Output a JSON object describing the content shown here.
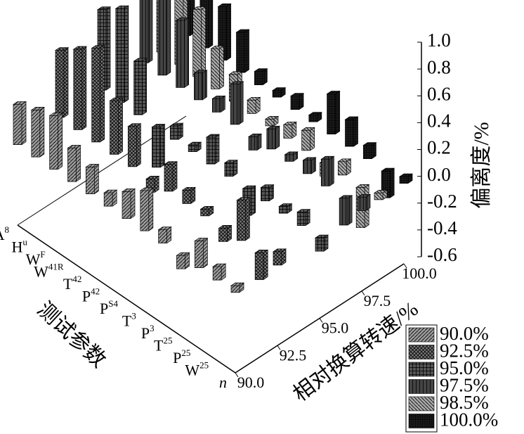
{
  "chart_data": {
    "type": "bar3d",
    "categories": [
      {
        "symbol": "A",
        "sub": "8"
      },
      {
        "symbol": "H",
        "sub": "u"
      },
      {
        "symbol": "W",
        "sub": "F"
      },
      {
        "symbol": "W",
        "sub": "41R"
      },
      {
        "symbol": "T",
        "sub": "42"
      },
      {
        "symbol": "P",
        "sub": "42"
      },
      {
        "symbol": "P",
        "sub": "S4"
      },
      {
        "symbol": "T",
        "sub": "3"
      },
      {
        "symbol": "P",
        "sub": "3"
      },
      {
        "symbol": "T",
        "sub": "25"
      },
      {
        "symbol": "P",
        "sub": "25"
      },
      {
        "symbol": "W",
        "sub": "25"
      },
      {
        "symbol": "n",
        "sub": null
      }
    ],
    "x": [
      90,
      92.5,
      95,
      97.5,
      98.5,
      100
    ],
    "xlim": [
      90,
      100
    ],
    "xticks": [
      {
        "value": 90,
        "label": "90.0"
      },
      92.5,
      {
        "value": 95,
        "label": "95.0"
      },
      97.5,
      {
        "value": 100,
        "label": "100.0"
      }
    ],
    "xlabel": "相对换算转速/%",
    "categories_label": "测试参数",
    "ylabel": "偏离度/%",
    "ylim": [
      -0.6,
      1.0
    ],
    "yticks": [
      {
        "value": 1,
        "label": "1.0"
      },
      0.8,
      0.6,
      0.4,
      0.2,
      {
        "value": 0,
        "label": "0.0"
      },
      -0.2,
      -0.4,
      -0.6
    ],
    "series": [
      {
        "name": "90.0%",
        "color": "#9a9a9a",
        "values": [
          0.3,
          0.35,
          0.4,
          0.25,
          0.2,
          0.1,
          0.2,
          0.3,
          0.1,
          -0.1,
          0.2,
          0.1,
          0.05
        ]
      },
      {
        "name": "92.5%",
        "color": "#7a7a7a",
        "values": [
          0.5,
          0.6,
          0.7,
          0.4,
          0.3,
          -0.1,
          0.2,
          0.1,
          0.05,
          -0.1,
          0.3,
          -0.2,
          0.1
        ]
      },
      {
        "name": "95.0%",
        "color": "#555555",
        "values": [
          0.6,
          0.7,
          0.4,
          -0.3,
          0.1,
          0.05,
          0.2,
          0.1,
          -0.2,
          0.1,
          0.05,
          0.1,
          -0.1
        ]
      },
      {
        "name": "97.5%",
        "color": "#444444",
        "values": [
          0.8,
          0.9,
          0.5,
          0.2,
          0.1,
          0.3,
          -0.1,
          0.15,
          0.05,
          0.1,
          0.2,
          -0.2,
          0.1
        ]
      },
      {
        "name": "98.5%",
        "color": "#a8a8a8",
        "values": [
          0.9,
          0.8,
          0.5,
          0.3,
          0.2,
          0.1,
          0.05,
          0.1,
          0.15,
          -0.1,
          0.1,
          -0.3,
          0.05
        ]
      },
      {
        "name": "100.0%",
        "color": "#2a2a2a",
        "values": [
          1.0,
          0.7,
          0.4,
          0.3,
          0.1,
          0.05,
          0.1,
          0.05,
          0.3,
          0.2,
          0.1,
          -0.2,
          0.05
        ]
      }
    ]
  }
}
